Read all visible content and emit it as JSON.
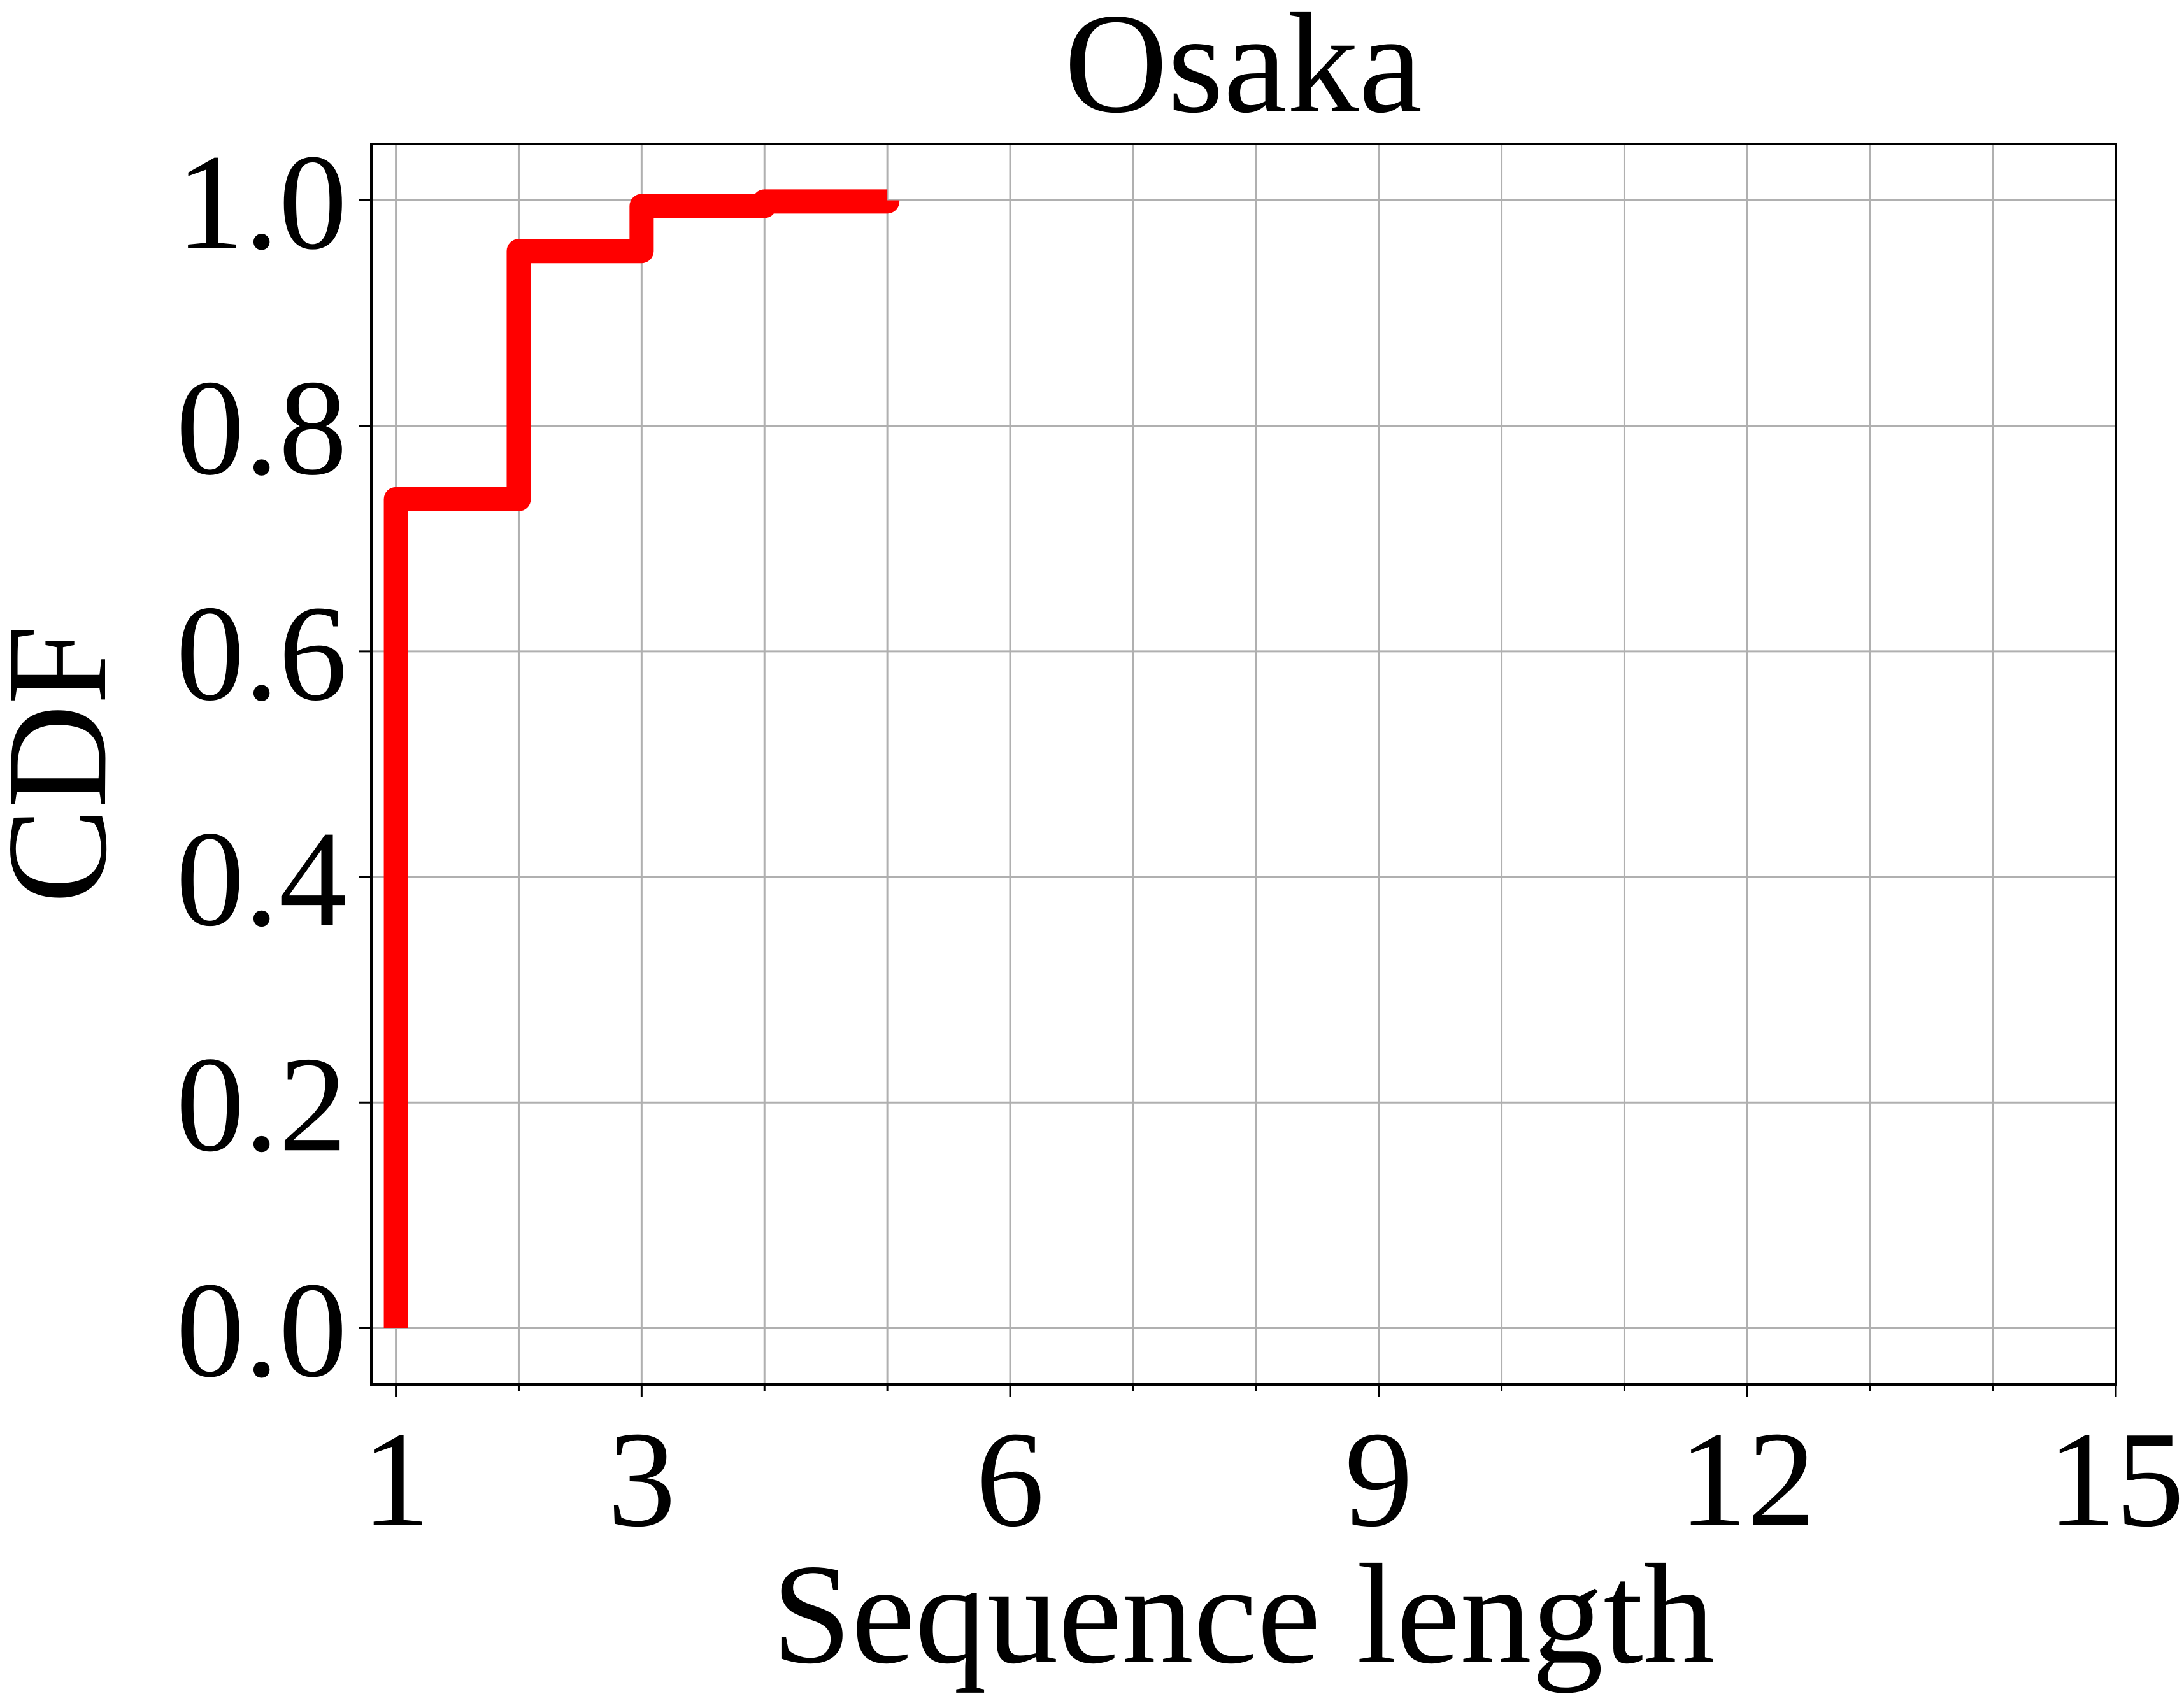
{
  "chart_data": {
    "type": "line",
    "title": "Osaka",
    "xlabel": "Sequence length",
    "ylabel": "CDF",
    "xlim": [
      0.8,
      15
    ],
    "ylim": [
      -0.05,
      1.05
    ],
    "x_ticks": [
      1,
      3,
      6,
      9,
      12,
      15
    ],
    "x_tick_labels": [
      "1",
      "3",
      "6",
      "9",
      "12",
      "15"
    ],
    "x_minor_ticks": [
      2,
      4,
      5,
      7,
      8,
      10,
      11,
      13,
      14
    ],
    "y_ticks": [
      0.0,
      0.2,
      0.4,
      0.6,
      0.8,
      1.0
    ],
    "y_tick_labels": [
      "0.0",
      "0.2",
      "0.4",
      "0.6",
      "0.8",
      "1.0"
    ],
    "grid": true,
    "series": [
      {
        "color": "#ff0000",
        "step": true,
        "x": [
          1,
          2,
          3,
          4,
          5
        ],
        "y": [
          0.735,
          0.955,
          0.995,
          0.999,
          1.0
        ]
      }
    ]
  }
}
